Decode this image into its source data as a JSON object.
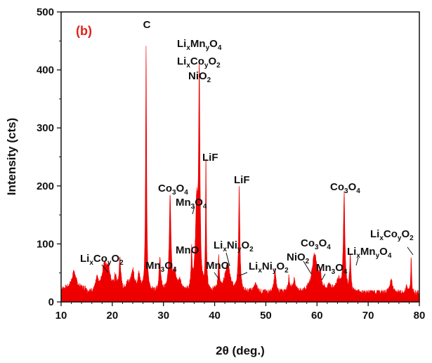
{
  "chart_data": {
    "type": "area",
    "panel_label": "(b)",
    "panel_label_color": "#e0201a",
    "fill_color": "#ee0000",
    "xlabel": "2θ (deg.)",
    "ylabel": "Intensity (cts)",
    "xlim": [
      10,
      80
    ],
    "ylim": [
      0,
      500
    ],
    "xticks": [
      10,
      20,
      30,
      40,
      50,
      60,
      70,
      80
    ],
    "yticks": [
      0,
      100,
      200,
      300,
      400,
      500
    ],
    "grid": false,
    "baseline": 15,
    "peaks": [
      {
        "x": 12.5,
        "y": 45,
        "w": 0.5
      },
      {
        "x": 17.0,
        "y": 35,
        "w": 0.3
      },
      {
        "x": 18.4,
        "y": 55,
        "w": 0.5
      },
      {
        "x": 19.2,
        "y": 52,
        "w": 0.5
      },
      {
        "x": 20.6,
        "y": 38,
        "w": 0.25
      },
      {
        "x": 21.5,
        "y": 70,
        "w": 0.2
      },
      {
        "x": 23.0,
        "y": 30,
        "w": 0.3
      },
      {
        "x": 24.0,
        "y": 50,
        "w": 0.4
      },
      {
        "x": 25.2,
        "y": 42,
        "w": 0.3
      },
      {
        "x": 26.6,
        "y": 435,
        "w": 0.12
      },
      {
        "x": 29.3,
        "y": 70,
        "w": 0.2
      },
      {
        "x": 31.3,
        "y": 180,
        "w": 0.2
      },
      {
        "x": 32.2,
        "y": 45,
        "w": 0.4
      },
      {
        "x": 33.2,
        "y": 30,
        "w": 0.3
      },
      {
        "x": 35.5,
        "y": 80,
        "w": 0.12
      },
      {
        "x": 36.5,
        "y": 160,
        "w": 0.3
      },
      {
        "x": 37.0,
        "y": 375,
        "w": 0.15
      },
      {
        "x": 38.3,
        "y": 240,
        "w": 0.1
      },
      {
        "x": 40.8,
        "y": 70,
        "w": 0.15
      },
      {
        "x": 42.5,
        "y": 62,
        "w": 0.6
      },
      {
        "x": 44.8,
        "y": 200,
        "w": 0.15
      },
      {
        "x": 48.0,
        "y": 28,
        "w": 0.4
      },
      {
        "x": 51.8,
        "y": 55,
        "w": 0.2
      },
      {
        "x": 54.5,
        "y": 40,
        "w": 0.2
      },
      {
        "x": 55.5,
        "y": 35,
        "w": 0.3
      },
      {
        "x": 59.5,
        "y": 80,
        "w": 0.6
      },
      {
        "x": 60.6,
        "y": 40,
        "w": 0.3
      },
      {
        "x": 62.5,
        "y": 25,
        "w": 0.4
      },
      {
        "x": 64.2,
        "y": 35,
        "w": 0.5
      },
      {
        "x": 65.3,
        "y": 185,
        "w": 0.18
      },
      {
        "x": 66.5,
        "y": 75,
        "w": 0.15
      },
      {
        "x": 74.5,
        "y": 35,
        "w": 0.35
      },
      {
        "x": 77.5,
        "y": 28,
        "w": 0.15
      },
      {
        "x": 78.4,
        "y": 80,
        "w": 0.1
      }
    ],
    "annotations": [
      "C",
      "Li_xMn_yO_4",
      "Li_xCo_yO_2",
      "NiO_2",
      "LiF",
      "Co_3O_4",
      "Mn_3O_4",
      "LiF",
      "Li_xCo_yO_2",
      "Mn_3O_4",
      "MnO",
      "MnO",
      "Li_xNi_yO_2",
      "Li_xNi_yO_2",
      "NiO_2",
      "Co_3O_4",
      "Mn_3O_4",
      "Li_xMn_yO_4",
      "Co_3O_4",
      "Li_xCo_yO_2"
    ]
  }
}
